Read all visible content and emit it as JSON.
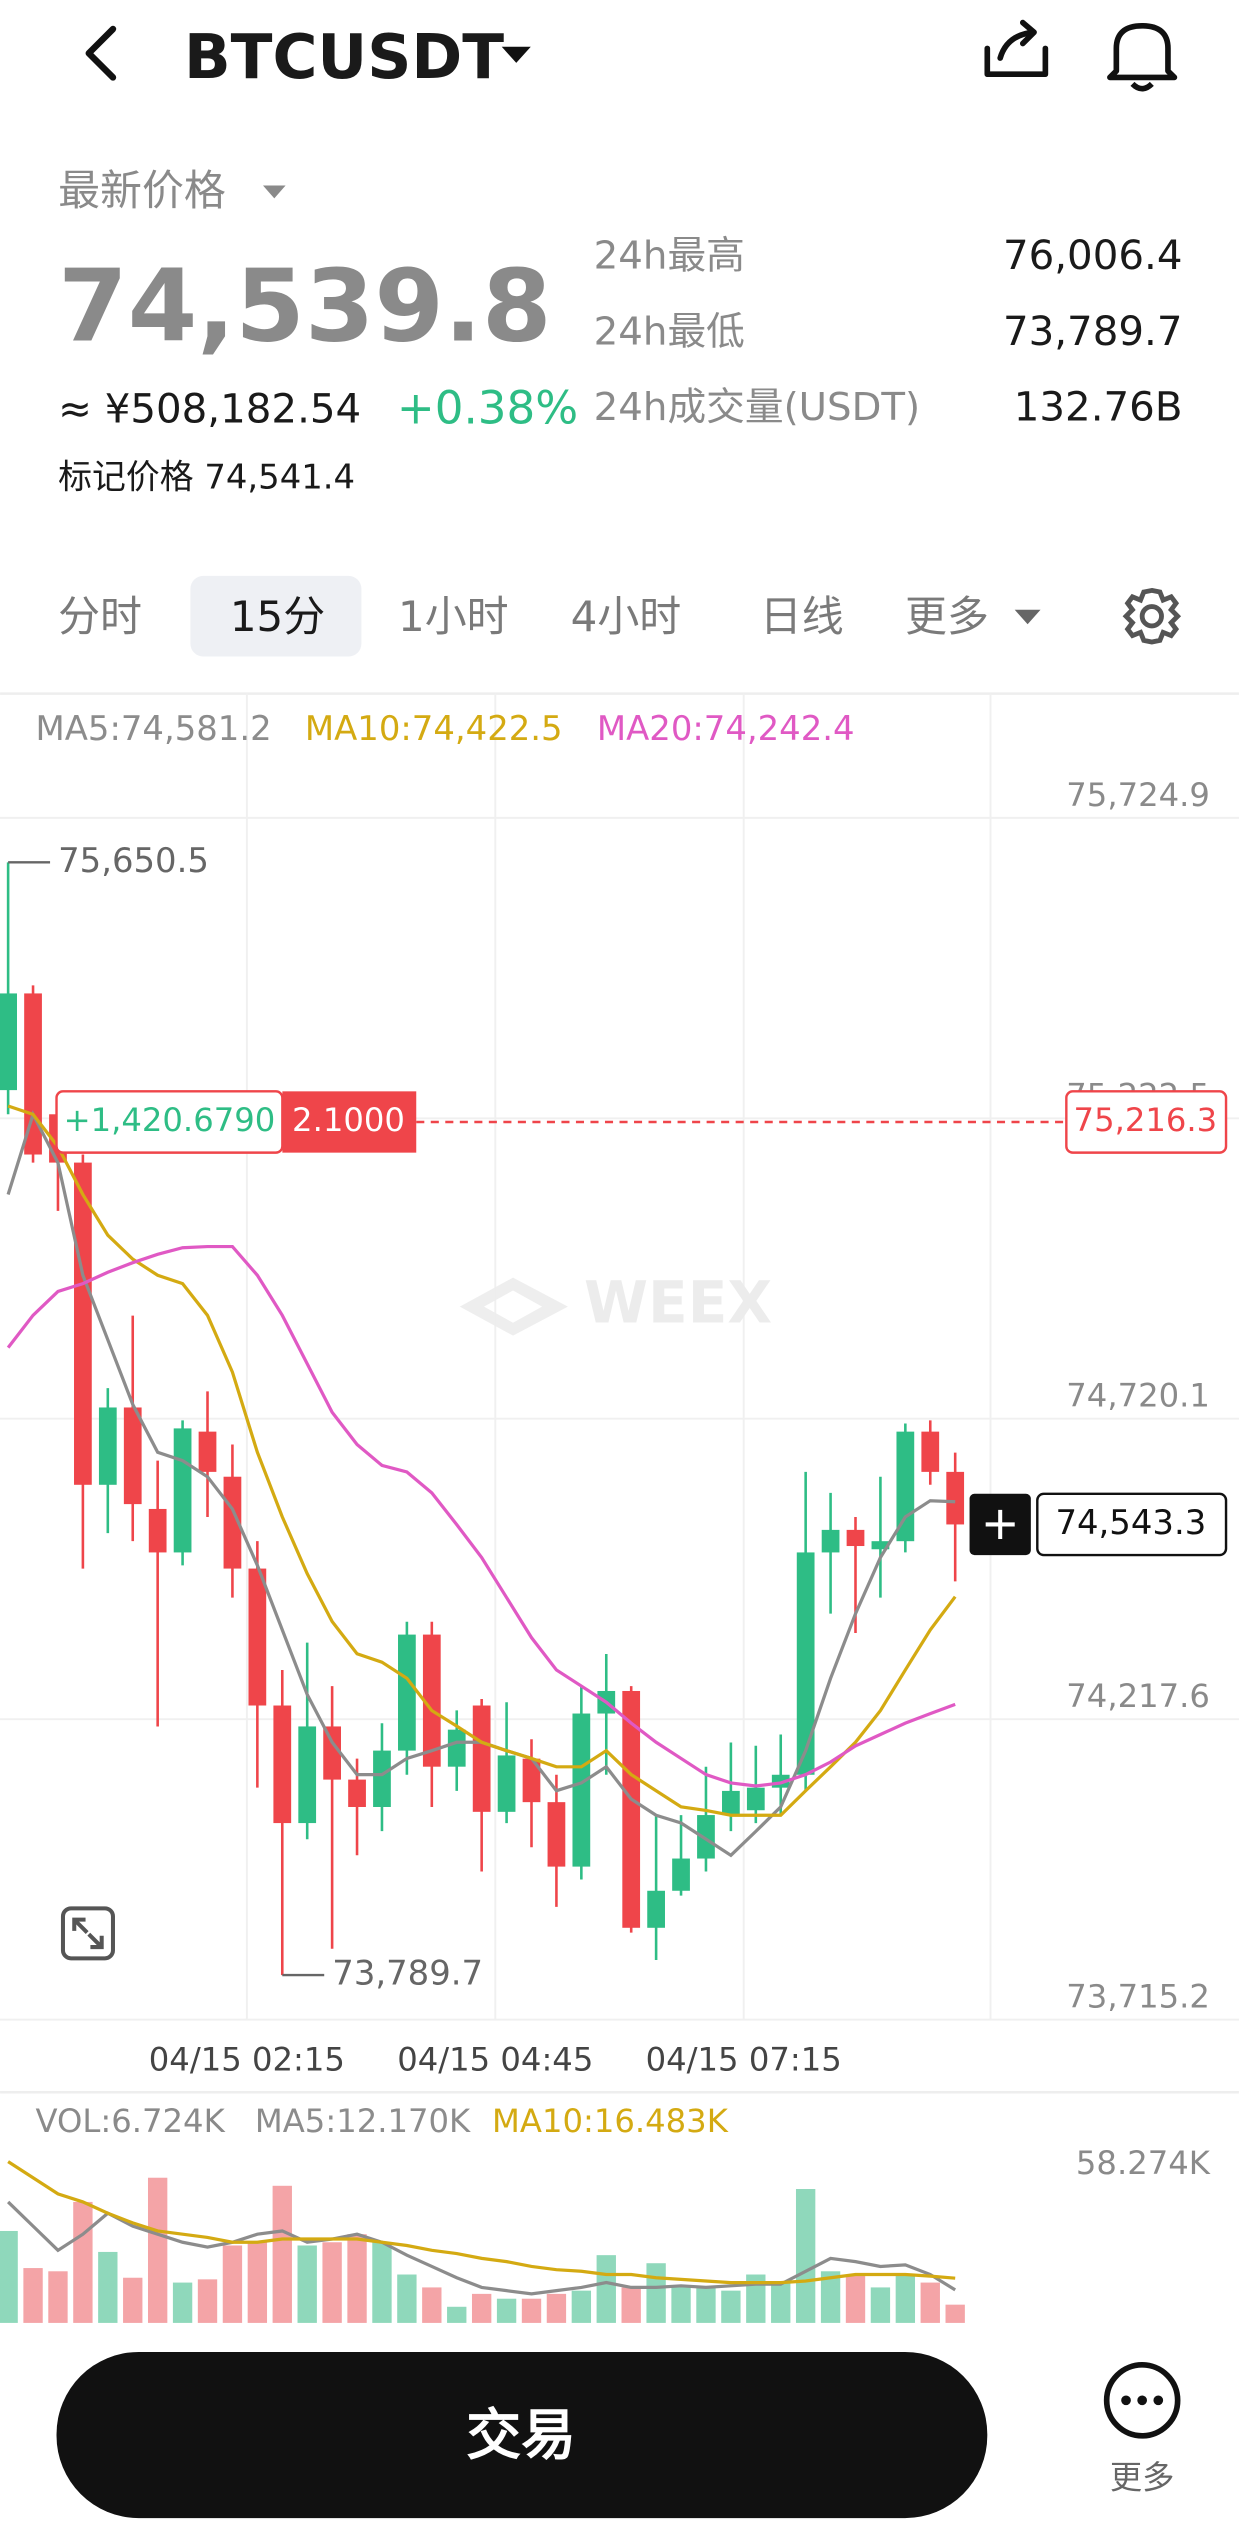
{
  "header": {
    "symbol": "BTCUSDT"
  },
  "price_panel": {
    "label": "最新价格",
    "last": "74,539.8",
    "cny": "≈ ¥508,182.54",
    "change": "+0.38%",
    "mark_price": "标记价格 74,541.4",
    "stats": [
      {
        "label": "24h最高",
        "value": "76,006.4"
      },
      {
        "label": "24h最低",
        "value": "73,789.7"
      },
      {
        "label": "24h成交量(USDT)",
        "value": "132.76B"
      }
    ]
  },
  "tabs": [
    "分时",
    "15分",
    "1小时",
    "4小时",
    "日线",
    "更多"
  ],
  "active_tab": 1,
  "chart_data": [
    {
      "type": "candlestick",
      "ylim": [
        73715.2,
        75724.9
      ],
      "yticks": [
        {
          "value": 73715.2,
          "label": "73,715.2"
        },
        {
          "value": 74217.6,
          "label": "74,217.6"
        },
        {
          "value": 74720.1,
          "label": "74,720.1"
        },
        {
          "value": 75222.5,
          "label": "75,222.5"
        },
        {
          "value": 75724.9,
          "label": "75,724.9"
        }
      ],
      "grid": true,
      "x_labels": [
        "04/15 02:15",
        "04/15 04:45",
        "04/15 07:15"
      ],
      "up_color": "#2ebd85",
      "down_color": "#ef454a",
      "watermark": "WEEX",
      "ohlc": [
        [
          75269.6,
          75650.5,
          75229.2,
          75431.3
        ],
        [
          75431.3,
          75444.7,
          75148.4,
          75161.9
        ],
        [
          75229.2,
          75256.2,
          75067.6,
          75148.4
        ],
        [
          75148.4,
          75161.9,
          74469.5,
          74609.6
        ],
        [
          74609.6,
          74771.2,
          74528.8,
          74738.9
        ],
        [
          74738.9,
          74892.5,
          74515.3,
          74577.3
        ],
        [
          74569.2,
          74650.0,
          74205.5,
          74496.5
        ],
        [
          74496.5,
          74717.4,
          74474.9,
          74703.9
        ],
        [
          74698.5,
          74765.9,
          74555.7,
          74631.2
        ],
        [
          74623.1,
          74677.0,
          74421.0,
          74469.5
        ],
        [
          74469.5,
          74515.3,
          74103.1,
          74240.5
        ],
        [
          74240.5,
          74299.8,
          73789.7,
          74043.9
        ],
        [
          74043.9,
          74345.6,
          74016.9,
          74205.5
        ],
        [
          74205.5,
          74272.9,
          73833.7,
          74116.6
        ],
        [
          74116.6,
          74151.6,
          73990.0,
          74070.8
        ],
        [
          74070.8,
          74210.9,
          74030.4,
          74165.1
        ],
        [
          74165.1,
          74380.6,
          74124.7,
          74359.1
        ],
        [
          74359.1,
          74380.6,
          74070.8,
          74138.2
        ],
        [
          74138.2,
          74232.4,
          74097.7,
          74200.1
        ],
        [
          74240.5,
          74251.3,
          73963.0,
          74062.7
        ],
        [
          74062.7,
          74245.9,
          74043.9,
          74157.0
        ],
        [
          74151.6,
          74184.0,
          74003.5,
          74078.9
        ],
        [
          74078.9,
          74124.7,
          73903.8,
          73971.1
        ],
        [
          73971.1,
          74272.9,
          73949.6,
          74227.1
        ],
        [
          74227.1,
          74326.7,
          74124.7,
          74264.8
        ],
        [
          74264.8,
          74272.9,
          73860.7,
          73868.8
        ],
        [
          73868.8,
          74057.3,
          73814.9,
          73930.7
        ],
        [
          73930.7,
          74057.3,
          73922.6,
          73984.6
        ],
        [
          73984.6,
          74138.2,
          73963.0,
          74057.3
        ],
        [
          74057.3,
          74178.6,
          74030.4,
          74097.7
        ],
        [
          74065.4,
          74173.2,
          74043.9,
          74103.1
        ],
        [
          74103.1,
          74192.0,
          74057.3,
          74124.7
        ],
        [
          74124.7,
          74631.2,
          74097.7,
          74496.5
        ],
        [
          74496.5,
          74596.1,
          74394.1,
          74534.2
        ],
        [
          74534.2,
          74555.7,
          74361.8,
          74507.2
        ],
        [
          74501.8,
          74623.1,
          74421.0,
          74515.3
        ],
        [
          74515.3,
          74712.0,
          74496.5,
          74698.5
        ],
        [
          74698.5,
          74717.4,
          74609.6,
          74631.2
        ],
        [
          74631.2,
          74663.5,
          74448.0,
          74543.3
        ]
      ],
      "series": [
        {
          "name": "MA5:74,581.2",
          "color": "#8c8c8c",
          "values": [
            75095,
            75229,
            75148,
            74960,
            74852,
            74744,
            74664,
            74650,
            74623,
            74569,
            74475,
            74367,
            74259,
            74179,
            74125,
            74125,
            74152,
            74165,
            74179,
            74179,
            74165,
            74152,
            74098,
            74111,
            74138,
            74084,
            74057,
            74044,
            74017,
            73990,
            74030,
            74071,
            74165,
            74286,
            74394,
            74488,
            74556,
            74583,
            74581.2
          ]
        },
        {
          "name": "MA10:74,422.5",
          "color": "#d4aa12",
          "values": [
            75243,
            75229,
            75175,
            75095,
            75027,
            74987,
            74960,
            74946,
            74893,
            74798,
            74664,
            74556,
            74461,
            74381,
            74327,
            74313,
            74286,
            74232,
            74206,
            74179,
            74165,
            74152,
            74138,
            74138,
            74165,
            74125,
            74098,
            74071,
            74065,
            74057,
            74057,
            74057,
            74098,
            74138,
            74179,
            74232,
            74300,
            74367,
            74422.5
          ]
        },
        {
          "name": "MA20:74,242.4",
          "color": "#e059c4",
          "values": [
            74839,
            74893,
            74933,
            74946,
            74965,
            74981,
            74995,
            75006,
            75008,
            75008,
            74960,
            74893,
            74812,
            74731,
            74677,
            74642,
            74631,
            74596,
            74543,
            74488,
            74421,
            74354,
            74300,
            74273,
            74246,
            74211,
            74179,
            74152,
            74125,
            74111,
            74106,
            74111,
            74125,
            74146,
            74173,
            74192,
            74211,
            74227,
            74242.4
          ]
        }
      ],
      "annotations": [
        {
          "value": 75650.5,
          "label": "75,650.5"
        },
        {
          "value": 73789.7,
          "label": "73,789.7"
        }
      ],
      "position_line": {
        "value": 75216.3,
        "label": "75,216.3",
        "pnl": "+1,420.6790",
        "qty": "2.1000"
      },
      "last_price": {
        "value": 74543.3,
        "label": "74,543.3"
      }
    },
    {
      "type": "bar",
      "title": "VOL:6.724K",
      "ylim": [
        0,
        58274
      ],
      "yticks": [
        {
          "value": 58274,
          "label": "58.274K"
        }
      ],
      "up_color": "#8fd8bb",
      "down_color": "#f4a4a7",
      "values": [
        33892,
        20216,
        19027,
        44595,
        26162,
        16649,
        53514,
        14865,
        16054,
        28541,
        29730,
        50541,
        28541,
        29730,
        32703,
        29730,
        17838,
        13081,
        5946,
        10703,
        8919,
        8919,
        10703,
        11892,
        24973,
        13081,
        22000,
        13081,
        13081,
        11892,
        17838,
        14865,
        49352,
        19027,
        17838,
        13081,
        17838,
        14865,
        6724
      ],
      "series": [
        {
          "name": "MA5:12.170K",
          "color": "#8c8c8c",
          "values": [
            44595,
            35676,
            26757,
            32703,
            40433,
            35676,
            32703,
            29730,
            27946,
            29730,
            32703,
            33892,
            29730,
            30919,
            32703,
            29730,
            24973,
            20811,
            16649,
            13081,
            11892,
            10703,
            11892,
            13081,
            14865,
            13081,
            13081,
            13676,
            13081,
            13676,
            14270,
            14270,
            19027,
            23784,
            22595,
            20811,
            21406,
            17838,
            12170
          ]
        },
        {
          "name": "MA10:16.483K",
          "color": "#d4aa12",
          "values": [
            59460,
            53514,
            47568,
            44595,
            40433,
            36865,
            33892,
            32703,
            31514,
            29730,
            29730,
            30919,
            30919,
            30919,
            30919,
            29730,
            28541,
            26757,
            25568,
            23784,
            22595,
            20811,
            19622,
            19027,
            17838,
            17838,
            16649,
            16054,
            15460,
            14865,
            14865,
            14865,
            15460,
            16649,
            17838,
            17838,
            17838,
            17243,
            16483
          ]
        }
      ]
    }
  ],
  "trade_button": "交易",
  "more_label": "更多"
}
